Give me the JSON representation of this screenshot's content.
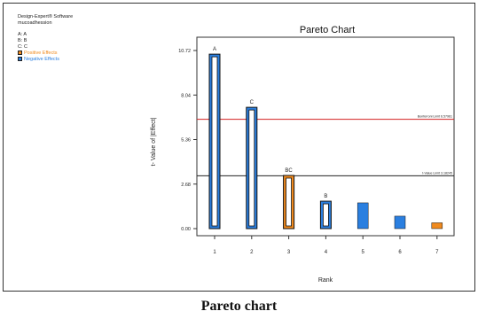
{
  "software": "Design-Expert® Software",
  "response": "mucoadhession",
  "factors": [
    "A: A",
    "B: B",
    "C: C"
  ],
  "effect_legend": [
    {
      "label": "Positive Effects",
      "color": "#f08a1e"
    },
    {
      "label": "Negative Effects",
      "color": "#2a7fe0"
    }
  ],
  "caption": "Pareto chart",
  "colors": {
    "positive": "#f08a1e",
    "negative": "#2a7fe0",
    "bonferroni": "#d42020",
    "tlimit": "#222222"
  },
  "chart_data": {
    "type": "bar",
    "title": "Pareto Chart",
    "xlabel": "Rank",
    "ylabel": "t- Value of |Effect|",
    "categories": [
      1,
      2,
      3,
      4,
      5,
      6,
      7
    ],
    "ylim": [
      0,
      10.72
    ],
    "yticks": [
      0.0,
      2.68,
      5.36,
      8.04,
      10.72
    ],
    "ytick_labels": [
      "0.00",
      "2.68",
      "5.36",
      "8.04",
      "10.72"
    ],
    "bars": [
      {
        "rank": 1,
        "value": 10.5,
        "sign": "negative",
        "label": "A",
        "hollow": true
      },
      {
        "rank": 2,
        "value": 7.3,
        "sign": "negative",
        "label": "C",
        "hollow": true
      },
      {
        "rank": 3,
        "value": 3.2,
        "sign": "positive",
        "label": "BC",
        "hollow": true
      },
      {
        "rank": 4,
        "value": 1.65,
        "sign": "negative",
        "label": "B",
        "hollow": true
      },
      {
        "rank": 5,
        "value": 1.55,
        "sign": "negative",
        "label": "",
        "hollow": false
      },
      {
        "rank": 6,
        "value": 0.75,
        "sign": "negative",
        "label": "",
        "hollow": false
      },
      {
        "rank": 7,
        "value": 0.35,
        "sign": "positive",
        "label": "",
        "hollow": false
      }
    ],
    "reference_lines": [
      {
        "name": "Bonferroni Limit 6.57961",
        "value": 6.58,
        "color": "#d42020"
      },
      {
        "name": "t-Value Limit 3.18245",
        "value": 3.18,
        "color": "#222222"
      }
    ]
  }
}
